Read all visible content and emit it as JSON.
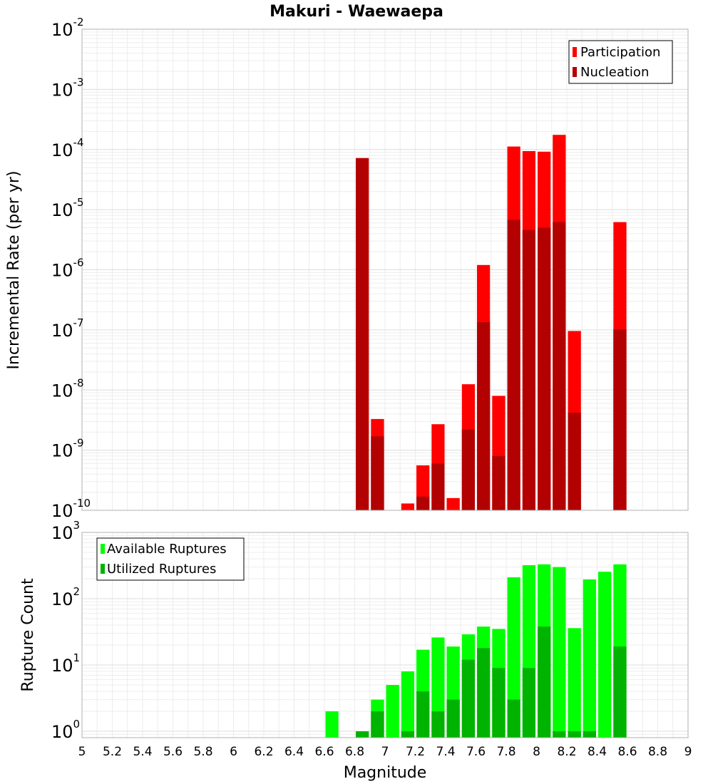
{
  "chart_data": [
    {
      "type": "bar",
      "title": "Makuri - Waewaepa",
      "ylabel": "Incremental Rate (per yr)",
      "yscale": "log",
      "ylim": [
        1e-10,
        0.01
      ],
      "xlim": [
        5,
        9
      ],
      "bar_width": 0.1,
      "overlay": true,
      "grid": true,
      "legend_position": "top-right",
      "ytick_labels": [
        {
          "base": "10",
          "exp": "-10",
          "value": 1e-10
        },
        {
          "base": "10",
          "exp": "-9",
          "value": 1e-09
        },
        {
          "base": "10",
          "exp": "-8",
          "value": 1e-08
        },
        {
          "base": "10",
          "exp": "-7",
          "value": 1e-07
        },
        {
          "base": "10",
          "exp": "-6",
          "value": 1e-06
        },
        {
          "base": "10",
          "exp": "-5",
          "value": 1e-05
        },
        {
          "base": "10",
          "exp": "-4",
          "value": 0.0001
        },
        {
          "base": "10",
          "exp": "-3",
          "value": 0.001
        },
        {
          "base": "10",
          "exp": "-2",
          "value": 0.01
        }
      ],
      "series": [
        {
          "name": "Participation",
          "color": "#ff0000",
          "x": [
            6.85,
            6.95,
            7.15,
            7.25,
            7.35,
            7.45,
            7.55,
            7.65,
            7.75,
            7.85,
            7.95,
            8.05,
            8.15,
            8.25,
            8.55
          ],
          "values": [
            7.2e-05,
            3.3e-09,
            1.3e-10,
            5.6e-10,
            2.7e-09,
            1.6e-10,
            1.25e-08,
            1.2e-06,
            8e-09,
            0.000112,
            9.4e-05,
            9.2e-05,
            0.000175,
            9.6e-08,
            6.2e-06
          ]
        },
        {
          "name": "Nucleation",
          "color": "#b30000",
          "x": [
            6.85,
            6.95,
            7.25,
            7.35,
            7.55,
            7.65,
            7.75,
            7.85,
            7.95,
            8.05,
            8.15,
            8.25,
            8.55
          ],
          "values": [
            7.2e-05,
            1.7e-09,
            1.7e-10,
            6e-10,
            2.2e-09,
            1.35e-07,
            8e-10,
            6.8e-06,
            4.6e-06,
            5e-06,
            6.2e-06,
            4.2e-09,
            1.02e-07
          ]
        }
      ]
    },
    {
      "type": "bar",
      "xlabel": "Magnitude",
      "ylabel": "Rupture Count",
      "yscale": "log",
      "ylim": [
        0.8,
        1000
      ],
      "xlim": [
        5,
        9
      ],
      "bar_width": 0.1,
      "overlay": true,
      "grid": true,
      "legend_position": "top-left",
      "xticks": [
        "5",
        "5.2",
        "5.4",
        "5.6",
        "5.8",
        "6",
        "6.2",
        "6.4",
        "6.6",
        "6.8",
        "7",
        "7.2",
        "7.4",
        "7.6",
        "7.8",
        "8",
        "8.2",
        "8.4",
        "8.6",
        "8.8",
        "9"
      ],
      "ytick_labels": [
        {
          "base": "10",
          "exp": "0",
          "value": 1
        },
        {
          "base": "10",
          "exp": "1",
          "value": 10
        },
        {
          "base": "10",
          "exp": "2",
          "value": 100
        },
        {
          "base": "10",
          "exp": "3",
          "value": 1000
        }
      ],
      "series": [
        {
          "name": "Available Ruptures",
          "color": "#00ff00",
          "x": [
            6.65,
            6.85,
            6.95,
            7.05,
            7.15,
            7.25,
            7.35,
            7.45,
            7.55,
            7.65,
            7.75,
            7.85,
            7.95,
            8.05,
            8.15,
            8.25,
            8.35,
            8.45,
            8.55
          ],
          "values": [
            2,
            1,
            3,
            5,
            8,
            17,
            26,
            19,
            29,
            38,
            35,
            210,
            320,
            330,
            300,
            36,
            195,
            255,
            330
          ]
        },
        {
          "name": "Utilized Ruptures",
          "color": "#00b300",
          "x": [
            6.85,
            6.95,
            7.15,
            7.25,
            7.35,
            7.45,
            7.55,
            7.65,
            7.75,
            7.85,
            7.95,
            8.05,
            8.15,
            8.25,
            8.35,
            8.55
          ],
          "values": [
            1,
            2,
            1,
            4,
            2,
            3,
            12,
            18,
            9,
            3,
            9,
            38,
            1,
            1,
            1,
            19
          ]
        }
      ]
    }
  ]
}
